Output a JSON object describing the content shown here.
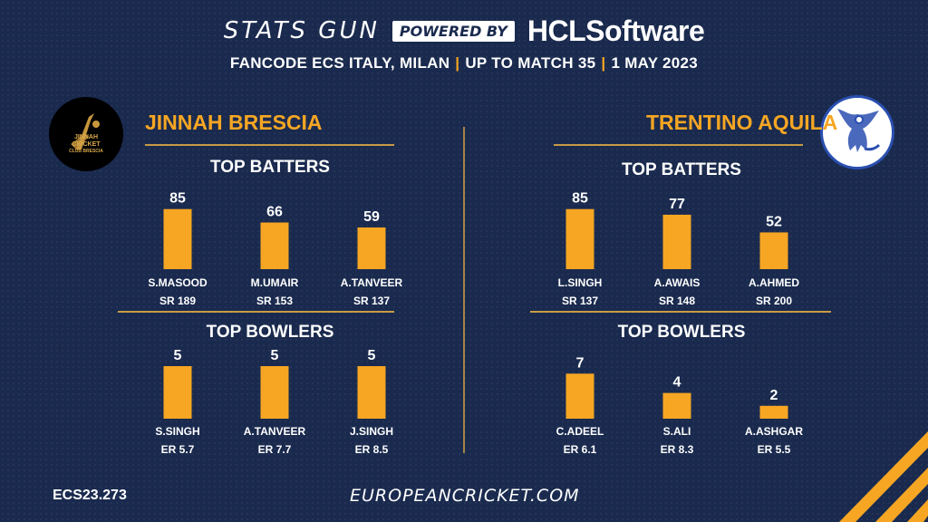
{
  "header": {
    "brand": "STATS GUN",
    "powered": "POWERED BY",
    "sponsor": "HCLSoftware",
    "subtitle_parts": [
      "FANCODE ECS ITALY, MILAN",
      "UP TO MATCH  35",
      "1 MAY 2023"
    ],
    "separator": "|"
  },
  "left_team": {
    "name": "JINNAH BRESCIA",
    "logo_text": [
      "JINNAH",
      "CRICKET",
      "CLUB BRESCIA"
    ]
  },
  "right_team": {
    "name": "TRENTINO AQUILA"
  },
  "sections": {
    "batters": "TOP BATTERS",
    "bowlers": "TOP BOWLERS"
  },
  "footer": {
    "code": "ECS23.273",
    "url": "EUROPEANCRICKET.COM"
  },
  "colors": {
    "bar": "#f6a623",
    "background": "#1a2a4e",
    "accent_line": "#c89a46"
  },
  "chart_data": [
    {
      "type": "bar",
      "title": "TOP BATTERS",
      "team": "JINNAH BRESCIA",
      "categories": [
        "S.MASOOD",
        "M.UMAIR",
        "A.TANVEER"
      ],
      "values": [
        85,
        66,
        59
      ],
      "sublabels": [
        "SR 189",
        "SR 153",
        "SR 137"
      ]
    },
    {
      "type": "bar",
      "title": "TOP BOWLERS",
      "team": "JINNAH BRESCIA",
      "categories": [
        "S.SINGH",
        "A.TANVEER",
        "J.SINGH"
      ],
      "values": [
        5,
        5,
        5
      ],
      "sublabels": [
        "ER 5.7",
        "ER 7.7",
        "ER 8.5"
      ]
    },
    {
      "type": "bar",
      "title": "TOP BATTERS",
      "team": "TRENTINO AQUILA",
      "categories": [
        "L.SINGH",
        "A.AWAIS",
        "A.AHMED"
      ],
      "values": [
        85,
        77,
        52
      ],
      "sublabels": [
        "SR 137",
        "SR 148",
        "SR 200"
      ]
    },
    {
      "type": "bar",
      "title": "TOP BOWLERS",
      "team": "TRENTINO AQUILA",
      "categories": [
        "C.ADEEL",
        "S.ALI",
        "A.ASHGAR"
      ],
      "values": [
        7,
        4,
        2
      ],
      "sublabels": [
        "ER 6.1",
        "ER 8.3",
        "ER 5.5"
      ]
    }
  ]
}
